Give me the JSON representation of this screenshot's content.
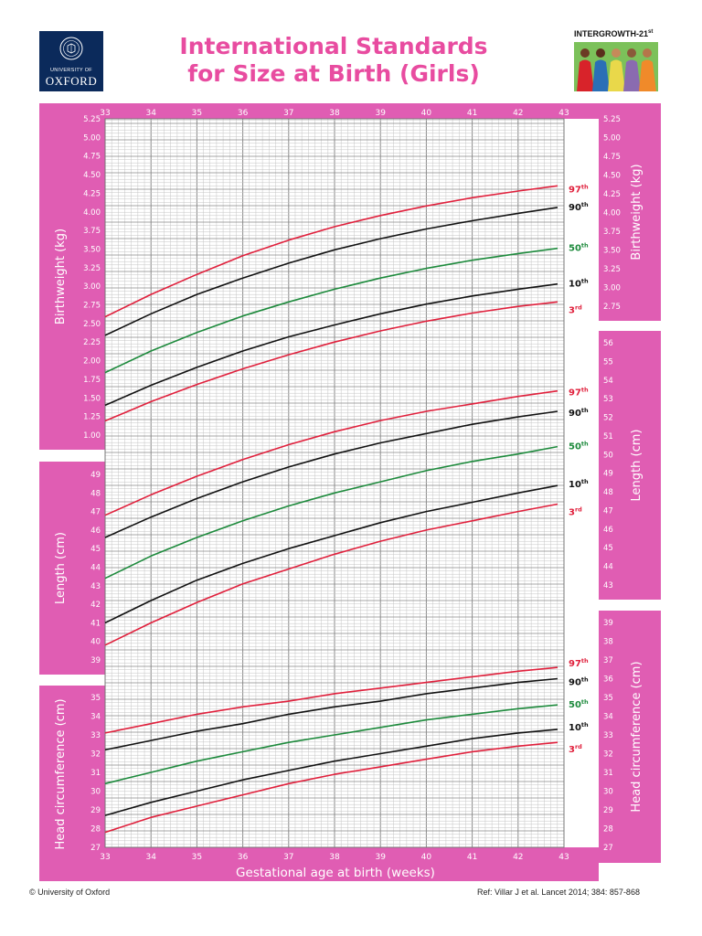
{
  "header": {
    "oxford_logo": {
      "line1": "UNIVERSITY OF",
      "line2": "OXFORD"
    },
    "title_line1": "International Standards",
    "title_line2": "for Size at Birth (Girls)",
    "intergrowth_label": "INTERGROWTH-21",
    "intergrowth_sup": "st"
  },
  "footer": {
    "copyright": "© University of Oxford",
    "reference": "Ref: Villar J et al. Lancet 2014; 384: 857-868"
  },
  "colors": {
    "pink_panel": "#e05db3",
    "red_curve": "#e0203c",
    "black_curve": "#111111",
    "green_curve": "#1d8a3c",
    "grid_minor": "#c4c4c4",
    "grid_major": "#8a8a8a"
  },
  "chart_data": {
    "type": "line",
    "xlabel": "Gestational age at birth (weeks)",
    "xlim": [
      33,
      43
    ],
    "x_ticks": [
      "33",
      "34",
      "35",
      "36",
      "37",
      "38",
      "39",
      "40",
      "41",
      "42",
      "43"
    ],
    "x": [
      33,
      34,
      35,
      36,
      37,
      38,
      39,
      40,
      41,
      42,
      42.86
    ],
    "percentile_labels": [
      {
        "num": "97",
        "sup": "th",
        "color": "red"
      },
      {
        "num": "90",
        "sup": "th",
        "color": "black"
      },
      {
        "num": "50",
        "sup": "th",
        "color": "green"
      },
      {
        "num": "10",
        "sup": "th",
        "color": "black"
      },
      {
        "num": "3",
        "sup": "rd",
        "color": "red"
      }
    ],
    "panels": [
      {
        "id": "birthweight",
        "ylabel": "Birthweight (kg)",
        "ticks": [
          "1.00",
          "1.25",
          "1.50",
          "1.75",
          "2.00",
          "2.25",
          "2.50",
          "2.75",
          "3.00",
          "3.25",
          "3.50",
          "3.75",
          "4.00",
          "4.25",
          "4.50",
          "4.75",
          "5.00",
          "5.25"
        ],
        "right_ticks": [
          "2.75",
          "3.00",
          "3.25",
          "3.50",
          "3.75",
          "4.00",
          "4.25",
          "4.50",
          "4.75",
          "5.00",
          "5.25"
        ],
        "series": [
          {
            "name": "97th",
            "values": [
              2.59,
              2.89,
              3.16,
              3.41,
              3.62,
              3.8,
              3.95,
              4.08,
              4.19,
              4.28,
              4.35
            ]
          },
          {
            "name": "90th",
            "values": [
              2.34,
              2.63,
              2.89,
              3.11,
              3.31,
              3.49,
              3.64,
              3.77,
              3.88,
              3.98,
              4.06
            ]
          },
          {
            "name": "50th",
            "values": [
              1.84,
              2.13,
              2.38,
              2.6,
              2.79,
              2.96,
              3.11,
              3.24,
              3.35,
              3.44,
              3.51
            ]
          },
          {
            "name": "10th",
            "values": [
              1.4,
              1.67,
              1.91,
              2.13,
              2.32,
              2.48,
              2.63,
              2.76,
              2.87,
              2.96,
              3.03
            ]
          },
          {
            "name": "3rd",
            "values": [
              1.19,
              1.45,
              1.68,
              1.89,
              2.08,
              2.25,
              2.4,
              2.53,
              2.64,
              2.73,
              2.79
            ]
          }
        ]
      },
      {
        "id": "length",
        "ylabel": "Length (cm)",
        "ticks": [
          "39",
          "40",
          "41",
          "42",
          "43",
          "44",
          "45",
          "46",
          "47",
          "48",
          "49"
        ],
        "right_ticks": [
          "43",
          "44",
          "45",
          "46",
          "47",
          "48",
          "49",
          "50",
          "51",
          "52",
          "53",
          "54",
          "55",
          "56"
        ],
        "series": [
          {
            "name": "97th",
            "values": [
              46.8,
              47.9,
              48.9,
              49.8,
              50.6,
              51.3,
              51.9,
              52.4,
              52.8,
              53.2,
              53.5
            ]
          },
          {
            "name": "90th",
            "values": [
              45.6,
              46.7,
              47.7,
              48.6,
              49.4,
              50.1,
              50.7,
              51.2,
              51.7,
              52.1,
              52.4
            ]
          },
          {
            "name": "50th",
            "values": [
              43.4,
              44.6,
              45.6,
              46.5,
              47.3,
              48.0,
              48.6,
              49.2,
              49.7,
              50.1,
              50.5
            ]
          },
          {
            "name": "10th",
            "values": [
              41.0,
              42.2,
              43.3,
              44.2,
              45.0,
              45.7,
              46.4,
              47.0,
              47.5,
              48.0,
              48.4
            ]
          },
          {
            "name": "3rd",
            "values": [
              39.8,
              41.0,
              42.1,
              43.1,
              43.9,
              44.7,
              45.4,
              46.0,
              46.5,
              47.0,
              47.4
            ]
          }
        ]
      },
      {
        "id": "head_circumference",
        "ylabel": "Head circumference (cm)",
        "ticks": [
          "27",
          "28",
          "29",
          "30",
          "31",
          "32",
          "33",
          "34",
          "35"
        ],
        "right_ticks": [
          "27",
          "28",
          "29",
          "30",
          "31",
          "32",
          "33",
          "34",
          "35",
          "36",
          "37",
          "38",
          "39"
        ],
        "series": [
          {
            "name": "97th",
            "values": [
              33.1,
              33.6,
              34.1,
              34.5,
              34.8,
              35.2,
              35.5,
              35.8,
              36.1,
              36.4,
              36.6
            ]
          },
          {
            "name": "90th",
            "values": [
              32.2,
              32.7,
              33.2,
              33.6,
              34.1,
              34.5,
              34.8,
              35.2,
              35.5,
              35.8,
              36.0
            ]
          },
          {
            "name": "50th",
            "values": [
              30.4,
              31.0,
              31.6,
              32.1,
              32.6,
              33.0,
              33.4,
              33.8,
              34.1,
              34.4,
              34.6
            ]
          },
          {
            "name": "10th",
            "values": [
              28.7,
              29.4,
              30.0,
              30.6,
              31.1,
              31.6,
              32.0,
              32.4,
              32.8,
              33.1,
              33.3
            ]
          },
          {
            "name": "3rd",
            "values": [
              27.8,
              28.6,
              29.2,
              29.8,
              30.4,
              30.9,
              31.3,
              31.7,
              32.1,
              32.4,
              32.6
            ]
          }
        ]
      }
    ]
  }
}
